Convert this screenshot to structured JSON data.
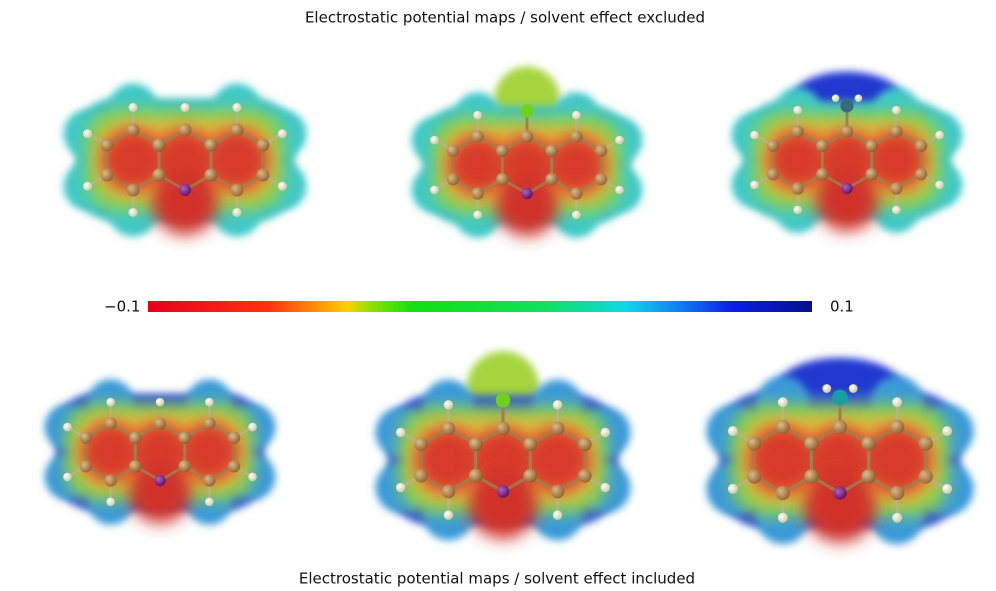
{
  "figure": {
    "top_caption": "Electrostatic potential maps / solvent effect excluded",
    "bottom_caption": "Electrostatic potential maps / solvent effect included",
    "colorbar": {
      "min_label": "−0.1",
      "max_label": "0.1"
    }
  }
}
